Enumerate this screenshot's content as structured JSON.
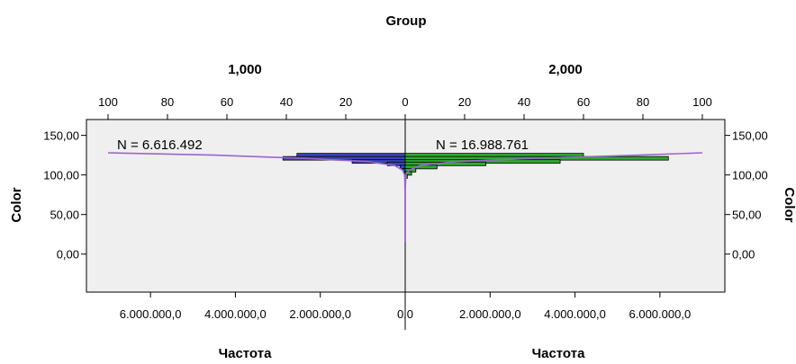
{
  "chart_data": {
    "type": "bar",
    "orientation": "horizontal",
    "title": "Group",
    "panels": [
      {
        "name": "1,000",
        "n_label": "N = 6.616.492",
        "side": "left",
        "bar_color": "#3a45b5",
        "bars": [
          {
            "y": 125,
            "x": 2550000
          },
          {
            "y": 121,
            "x": 2880000
          },
          {
            "y": 117,
            "x": 1250000
          },
          {
            "y": 114,
            "x": 420000
          },
          {
            "y": 110,
            "x": 120000
          },
          {
            "y": 106,
            "x": 50000
          },
          {
            "y": 102,
            "x": 20000
          }
        ],
        "density_curve": [
          [
            128,
            7000000
          ],
          [
            125,
            4500000
          ],
          [
            121,
            2400000
          ],
          [
            117,
            900000
          ],
          [
            112,
            250000
          ],
          [
            106,
            60000
          ],
          [
            100,
            12000
          ],
          [
            80,
            2000
          ],
          [
            50,
            500
          ],
          [
            15,
            0
          ]
        ],
        "curve_color": "#9966cc"
      },
      {
        "name": "2,000",
        "n_label": "N = 16.988.761",
        "side": "right",
        "bar_color": "#2faa2f",
        "bars": [
          {
            "y": 125,
            "x": 4200000
          },
          {
            "y": 121,
            "x": 6200000
          },
          {
            "y": 117,
            "x": 3650000
          },
          {
            "y": 114,
            "x": 1900000
          },
          {
            "y": 110,
            "x": 750000
          },
          {
            "y": 106,
            "x": 250000
          },
          {
            "y": 102,
            "x": 150000
          },
          {
            "y": 98,
            "x": 50000
          }
        ],
        "density_curve": [
          [
            128,
            7000000
          ],
          [
            125,
            5500000
          ],
          [
            121,
            3000000
          ],
          [
            117,
            1200000
          ],
          [
            112,
            350000
          ],
          [
            106,
            90000
          ],
          [
            100,
            15000
          ],
          [
            80,
            2000
          ],
          [
            50,
            500
          ],
          [
            15,
            0
          ]
        ],
        "curve_color": "#9966cc"
      }
    ],
    "y_axis": {
      "label": "Color",
      "ticks": [
        "0,00",
        "50,00",
        "100,00",
        "150,00"
      ],
      "tick_values": [
        0,
        50,
        100,
        150
      ],
      "range": [
        -48,
        170
      ]
    },
    "x_axis_bottom": {
      "label": "Частота",
      "ticks_left": [
        "6.000.000,0",
        "4.000.000,0",
        "2.000.000,0",
        "0,0"
      ],
      "tick_values_left": [
        6000000,
        4000000,
        2000000,
        0
      ],
      "ticks_right": [
        "2.000.000,0",
        "4.000.000,0",
        "6.000.000,0"
      ],
      "tick_values_right": [
        2000000,
        4000000,
        6000000
      ],
      "range": [
        0,
        7000000
      ]
    },
    "x_axis_top": {
      "ticks_left": [
        "100",
        "80",
        "60",
        "40",
        "20",
        "0"
      ],
      "tick_values_left": [
        100,
        80,
        60,
        40,
        20,
        0
      ],
      "ticks_right": [
        "20",
        "40",
        "60",
        "80",
        "100"
      ],
      "tick_values_right": [
        20,
        40,
        60,
        80,
        100
      ],
      "range": [
        0,
        100
      ]
    },
    "grid": false,
    "plot_background": "#efefef"
  }
}
